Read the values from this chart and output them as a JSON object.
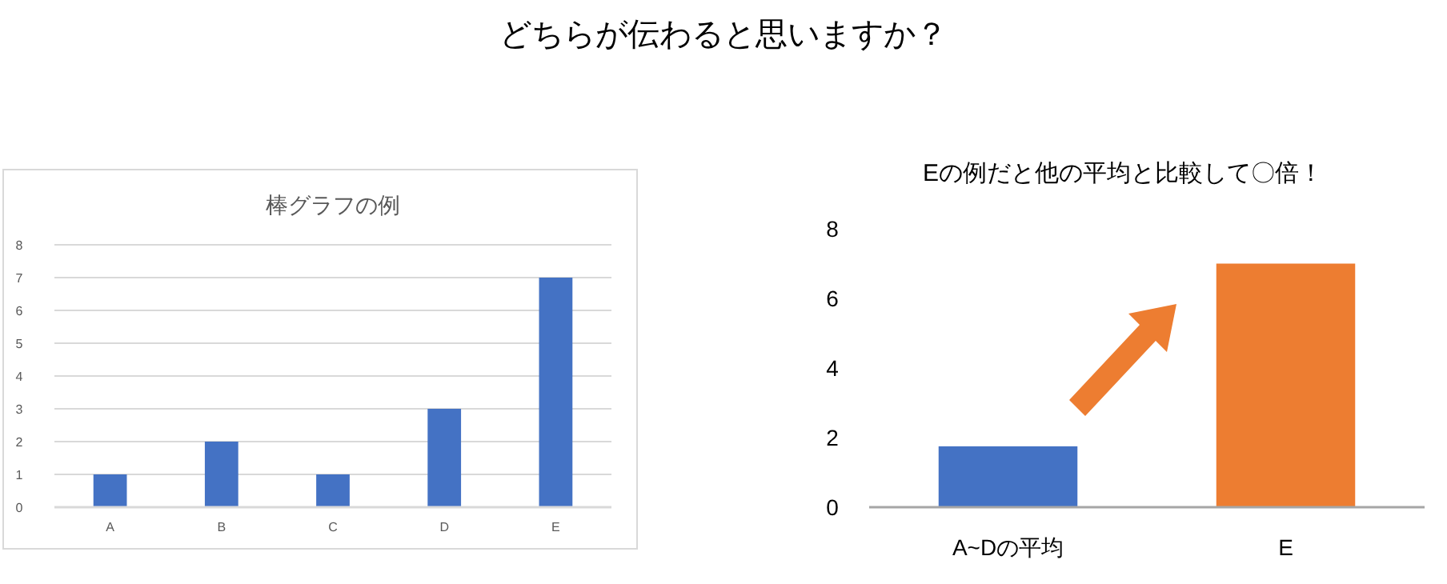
{
  "chart_data": [
    {
      "type": "bar",
      "title": "棒グラフの例",
      "annotations": [
        "どちらが伝わると思いますか？"
      ],
      "categories": [
        "A",
        "B",
        "C",
        "D",
        "E"
      ],
      "series": [
        {
          "color": "#4472c4",
          "values": [
            1,
            2,
            1,
            3,
            7
          ]
        }
      ],
      "ylim": [
        0,
        8
      ],
      "yticks": [
        0,
        1,
        2,
        3,
        4,
        5,
        6,
        7,
        8
      ],
      "grid": "y"
    },
    {
      "type": "bar",
      "title": "Eの例だと他の平均と比較して〇倍！",
      "categories": [
        "A~Dの平均",
        "E"
      ],
      "series": [
        {
          "colors": [
            "#4472c4",
            "#ed7d31"
          ],
          "values": [
            1.75,
            7
          ]
        }
      ],
      "ylim": [
        0,
        8
      ],
      "yticks": [
        0,
        2,
        4,
        6,
        8
      ],
      "grid": false
    }
  ]
}
